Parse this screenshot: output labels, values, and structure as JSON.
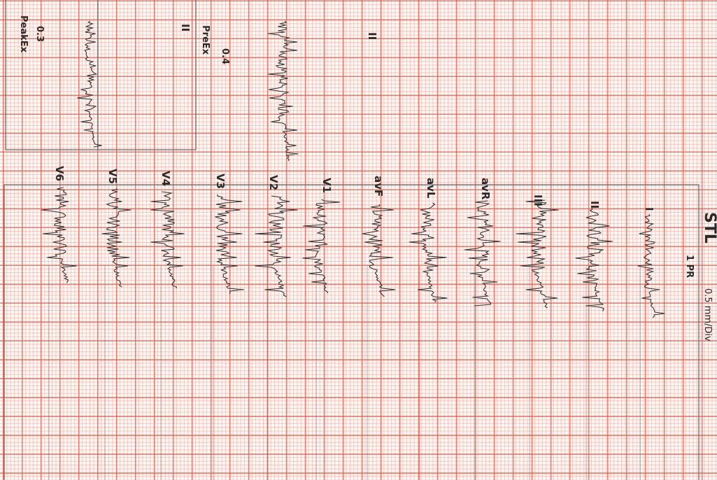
{
  "header": {
    "title_fragment": "STL",
    "pr": "1  PR",
    "scale": "0.5 mm/Div"
  },
  "rhythm": [
    {
      "level": "0.3",
      "mode": "PeakEx"
    },
    {
      "level": "0.4",
      "mode": "PreEx"
    }
  ],
  "rhythm_leads": [
    "II",
    "II"
  ],
  "leads": [
    "I",
    "II",
    "III",
    "avR",
    "avL",
    "avF",
    "V1",
    "V2",
    "V3",
    "V4",
    "V5",
    "V6"
  ]
}
